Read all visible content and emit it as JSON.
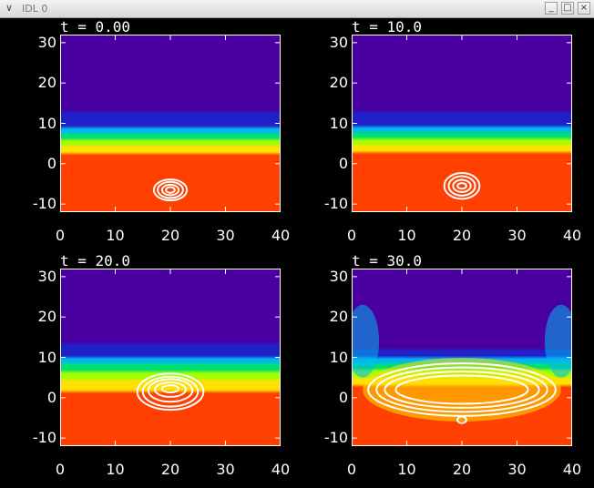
{
  "window": {
    "title": "IDL 0",
    "menu_icon": "chevron-down-icon",
    "buttons": [
      {
        "name": "minimize-button",
        "glyph": "_"
      },
      {
        "name": "maximize-button",
        "glyph": "□"
      },
      {
        "name": "close-button",
        "glyph": "×"
      }
    ]
  },
  "chart_data": [
    {
      "type": "heatmap",
      "title": "t = 0.00",
      "xlim": [
        0,
        40
      ],
      "ylim": [
        -12,
        32
      ],
      "xticks": [
        "0",
        "10",
        "20",
        "30",
        "40"
      ],
      "yticks": [
        "-10",
        "0",
        "10",
        "20",
        "30"
      ],
      "colors": [
        "#4a00a0",
        "#2020c8",
        "#00b8f0",
        "#00e070",
        "#a0ff00",
        "#ffe000",
        "#ff4000"
      ],
      "layer_bounds": [
        13,
        9,
        7.5,
        6,
        4.5,
        2.5
      ],
      "contours": [
        {
          "cx": 20,
          "cy": -6.5,
          "rx": 3.0,
          "ry": 2.6
        },
        {
          "cx": 20,
          "cy": -6.5,
          "rx": 2.3,
          "ry": 2.0
        },
        {
          "cx": 20,
          "cy": -6.5,
          "rx": 1.5,
          "ry": 1.3
        },
        {
          "cx": 20,
          "cy": -6.5,
          "rx": 0.8,
          "ry": 0.7
        }
      ]
    },
    {
      "type": "heatmap",
      "title": "t = 10.0",
      "xlim": [
        0,
        40
      ],
      "ylim": [
        -12,
        32
      ],
      "xticks": [
        "0",
        "10",
        "20",
        "30",
        "40"
      ],
      "yticks": [
        "-10",
        "0",
        "10",
        "20",
        "30"
      ],
      "colors": [
        "#4a00a0",
        "#2020c8",
        "#00b8f0",
        "#00e070",
        "#a0ff00",
        "#ffe000",
        "#ff4000"
      ],
      "layer_bounds": [
        13,
        9.2,
        7.8,
        6.2,
        4.7,
        2.8
      ],
      "contours": [
        {
          "cx": 20,
          "cy": -5.5,
          "rx": 3.2,
          "ry": 3.2
        },
        {
          "cx": 20,
          "cy": -5.5,
          "rx": 2.4,
          "ry": 2.4
        },
        {
          "cx": 20,
          "cy": -5.5,
          "rx": 1.6,
          "ry": 1.5
        },
        {
          "cx": 20,
          "cy": -5.5,
          "rx": 0.8,
          "ry": 0.7
        }
      ]
    },
    {
      "type": "heatmap",
      "title": "t = 20.0",
      "xlim": [
        0,
        40
      ],
      "ylim": [
        -12,
        32
      ],
      "xticks": [
        "0",
        "10",
        "20",
        "30",
        "40"
      ],
      "yticks": [
        "-10",
        "0",
        "10",
        "20",
        "30"
      ],
      "colors": [
        "#4a00a0",
        "#2020c8",
        "#00b8f0",
        "#00e070",
        "#a0ff00",
        "#ffe000",
        "#ff4000"
      ],
      "layer_bounds": [
        13.5,
        10,
        8.5,
        6.5,
        4.5,
        1.5
      ],
      "contours": [
        {
          "cx": 20,
          "cy": 1.5,
          "rx": 6.0,
          "ry": 4.5
        },
        {
          "cx": 20,
          "cy": 1.5,
          "rx": 5.0,
          "ry": 3.7
        },
        {
          "cx": 20,
          "cy": 1.8,
          "rx": 4.0,
          "ry": 2.8
        },
        {
          "cx": 20,
          "cy": 2.0,
          "rx": 2.8,
          "ry": 1.8
        },
        {
          "cx": 20,
          "cy": 2.2,
          "rx": 1.5,
          "ry": 0.9
        }
      ]
    },
    {
      "type": "heatmap",
      "title": "t = 30.0",
      "xlim": [
        0,
        40
      ],
      "ylim": [
        -12,
        32
      ],
      "xticks": [
        "0",
        "10",
        "20",
        "30",
        "40"
      ],
      "yticks": [
        "-10",
        "0",
        "10",
        "20",
        "30"
      ],
      "colors": [
        "#4a00a0",
        "#2020c8",
        "#00b8f0",
        "#00e070",
        "#a0ff00",
        "#ffe000",
        "#ff4000"
      ],
      "layer_bounds": [
        12,
        10,
        8.5,
        7,
        5,
        3
      ],
      "contours": [
        {
          "cx": 20,
          "cy": 2.0,
          "rx": 17.0,
          "ry": 6.5
        },
        {
          "cx": 20,
          "cy": 2.0,
          "rx": 15.5,
          "ry": 5.5
        },
        {
          "cx": 20,
          "cy": 2.0,
          "rx": 14.0,
          "ry": 4.5
        },
        {
          "cx": 20,
          "cy": 2.0,
          "rx": 12.0,
          "ry": 3.5
        },
        {
          "cx": 20,
          "cy": -5.5,
          "rx": 0.8,
          "ry": 0.8
        }
      ]
    }
  ]
}
